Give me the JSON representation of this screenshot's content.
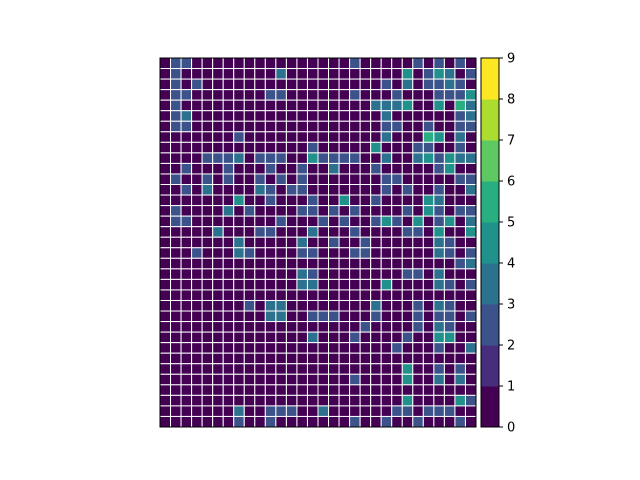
{
  "chart_data": {
    "type": "heatmap",
    "title": "",
    "xlabel": "",
    "ylabel": "",
    "rows": 35,
    "cols": 30,
    "grid": true,
    "cell_border_color": "#ffffff",
    "values": [
      [
        0,
        2,
        2,
        0,
        0,
        0,
        0,
        0,
        0,
        0,
        0,
        0,
        0,
        0,
        0,
        0,
        0,
        0,
        2,
        0,
        0,
        0,
        0,
        0,
        2,
        0,
        2,
        0,
        2,
        0
      ],
      [
        0,
        2,
        0,
        0,
        0,
        0,
        0,
        0,
        0,
        0,
        0,
        3,
        0,
        0,
        0,
        0,
        0,
        0,
        0,
        0,
        0,
        0,
        0,
        4,
        0,
        2,
        4,
        3,
        0,
        2
      ],
      [
        0,
        2,
        0,
        2,
        0,
        0,
        0,
        0,
        0,
        0,
        0,
        0,
        0,
        0,
        0,
        0,
        0,
        0,
        0,
        0,
        0,
        2,
        0,
        3,
        0,
        2,
        2,
        3,
        2,
        0
      ],
      [
        0,
        2,
        2,
        0,
        0,
        0,
        0,
        0,
        0,
        0,
        2,
        2,
        0,
        0,
        0,
        0,
        0,
        0,
        2,
        0,
        0,
        0,
        2,
        0,
        0,
        0,
        2,
        2,
        2,
        4
      ],
      [
        0,
        2,
        0,
        0,
        0,
        0,
        0,
        0,
        0,
        0,
        0,
        0,
        0,
        0,
        0,
        0,
        0,
        0,
        0,
        0,
        3,
        3,
        3,
        4,
        0,
        0,
        4,
        0,
        5,
        3
      ],
      [
        0,
        2,
        3,
        0,
        0,
        0,
        0,
        0,
        0,
        0,
        0,
        0,
        0,
        0,
        0,
        0,
        0,
        0,
        0,
        0,
        0,
        3,
        0,
        0,
        0,
        0,
        0,
        0,
        2,
        3
      ],
      [
        0,
        2,
        2,
        0,
        0,
        0,
        0,
        0,
        0,
        0,
        0,
        0,
        0,
        0,
        0,
        0,
        0,
        0,
        0,
        0,
        0,
        2,
        2,
        0,
        0,
        2,
        0,
        0,
        2,
        2
      ],
      [
        0,
        0,
        0,
        0,
        0,
        0,
        0,
        2,
        0,
        0,
        0,
        0,
        0,
        0,
        0,
        0,
        0,
        0,
        0,
        0,
        0,
        3,
        0,
        0,
        0,
        5,
        4,
        0,
        3,
        0
      ],
      [
        0,
        0,
        0,
        0,
        0,
        0,
        0,
        0,
        0,
        0,
        0,
        0,
        0,
        0,
        2,
        0,
        0,
        0,
        0,
        0,
        4,
        0,
        0,
        0,
        2,
        2,
        0,
        0,
        2,
        0
      ],
      [
        0,
        0,
        0,
        0,
        2,
        2,
        2,
        3,
        0,
        2,
        2,
        2,
        0,
        0,
        4,
        2,
        2,
        2,
        2,
        0,
        0,
        3,
        0,
        0,
        3,
        4,
        2,
        4,
        3,
        3
      ],
      [
        0,
        0,
        2,
        0,
        0,
        0,
        2,
        0,
        0,
        0,
        2,
        0,
        0,
        2,
        0,
        0,
        3,
        0,
        0,
        0,
        2,
        0,
        0,
        0,
        0,
        0,
        2,
        4,
        0,
        0
      ],
      [
        0,
        2,
        0,
        0,
        2,
        0,
        2,
        0,
        0,
        2,
        0,
        2,
        0,
        2,
        0,
        0,
        0,
        0,
        0,
        0,
        0,
        2,
        2,
        0,
        0,
        0,
        0,
        0,
        2,
        2
      ],
      [
        0,
        0,
        2,
        0,
        3,
        0,
        0,
        0,
        0,
        3,
        2,
        0,
        2,
        2,
        0,
        0,
        0,
        0,
        0,
        0,
        0,
        2,
        0,
        2,
        0,
        0,
        2,
        0,
        0,
        3
      ],
      [
        0,
        0,
        0,
        0,
        0,
        0,
        0,
        4,
        0,
        0,
        2,
        0,
        0,
        0,
        2,
        0,
        0,
        4,
        0,
        0,
        2,
        0,
        0,
        0,
        0,
        4,
        3,
        0,
        0,
        0
      ],
      [
        0,
        2,
        0,
        0,
        0,
        0,
        3,
        0,
        2,
        0,
        0,
        0,
        0,
        2,
        2,
        0,
        2,
        0,
        2,
        0,
        0,
        0,
        0,
        2,
        0,
        4,
        2,
        0,
        2,
        2
      ],
      [
        0,
        2,
        2,
        0,
        0,
        0,
        0,
        0,
        0,
        0,
        0,
        2,
        0,
        0,
        0,
        2,
        0,
        2,
        0,
        0,
        2,
        4,
        2,
        0,
        4,
        0,
        2,
        4,
        0,
        3
      ],
      [
        0,
        0,
        0,
        0,
        0,
        3,
        0,
        0,
        0,
        2,
        2,
        0,
        0,
        0,
        3,
        0,
        0,
        0,
        2,
        0,
        0,
        0,
        0,
        2,
        2,
        0,
        4,
        0,
        0,
        4
      ],
      [
        0,
        0,
        0,
        0,
        0,
        0,
        0,
        3,
        0,
        0,
        0,
        0,
        0,
        3,
        0,
        0,
        2,
        0,
        0,
        2,
        0,
        0,
        0,
        0,
        0,
        0,
        3,
        2,
        0,
        0
      ],
      [
        0,
        0,
        0,
        2,
        0,
        0,
        0,
        3,
        2,
        0,
        0,
        0,
        0,
        2,
        2,
        0,
        0,
        0,
        2,
        2,
        0,
        0,
        0,
        0,
        0,
        0,
        3,
        2,
        0,
        2
      ],
      [
        0,
        0,
        0,
        0,
        0,
        0,
        0,
        0,
        0,
        0,
        0,
        0,
        0,
        0,
        0,
        0,
        0,
        0,
        0,
        0,
        0,
        0,
        0,
        0,
        0,
        0,
        0,
        0,
        2,
        3
      ],
      [
        0,
        0,
        0,
        0,
        0,
        0,
        0,
        0,
        0,
        0,
        0,
        0,
        0,
        3,
        2,
        0,
        0,
        0,
        0,
        0,
        0,
        0,
        0,
        2,
        2,
        0,
        3,
        0,
        0,
        0
      ],
      [
        0,
        0,
        0,
        0,
        0,
        0,
        0,
        0,
        0,
        0,
        0,
        0,
        0,
        3,
        3,
        0,
        0,
        0,
        0,
        0,
        0,
        4,
        0,
        0,
        0,
        0,
        3,
        2,
        0,
        2
      ],
      [
        0,
        0,
        0,
        0,
        0,
        0,
        0,
        0,
        0,
        0,
        0,
        0,
        0,
        0,
        0,
        0,
        0,
        0,
        0,
        0,
        0,
        0,
        0,
        0,
        0,
        0,
        0,
        0,
        0,
        0
      ],
      [
        0,
        0,
        0,
        0,
        0,
        0,
        0,
        0,
        2,
        0,
        3,
        3,
        0,
        0,
        0,
        0,
        0,
        0,
        0,
        0,
        3,
        0,
        0,
        0,
        2,
        0,
        3,
        2,
        0,
        0
      ],
      [
        0,
        0,
        0,
        0,
        0,
        0,
        0,
        0,
        0,
        0,
        3,
        3,
        0,
        0,
        2,
        2,
        2,
        0,
        0,
        0,
        2,
        0,
        0,
        0,
        2,
        0,
        2,
        2,
        0,
        2
      ],
      [
        0,
        0,
        0,
        0,
        0,
        0,
        0,
        0,
        0,
        0,
        0,
        0,
        0,
        0,
        0,
        0,
        0,
        0,
        0,
        2,
        0,
        0,
        0,
        0,
        2,
        0,
        3,
        2,
        0,
        0
      ],
      [
        0,
        0,
        0,
        0,
        0,
        0,
        0,
        0,
        0,
        0,
        0,
        0,
        0,
        0,
        3,
        0,
        0,
        0,
        2,
        0,
        0,
        0,
        0,
        2,
        0,
        0,
        4,
        4,
        0,
        0
      ],
      [
        0,
        0,
        0,
        0,
        0,
        0,
        0,
        0,
        0,
        0,
        0,
        0,
        0,
        0,
        0,
        0,
        0,
        0,
        0,
        0,
        0,
        0,
        2,
        0,
        0,
        0,
        2,
        0,
        0,
        3
      ],
      [
        0,
        0,
        0,
        0,
        0,
        0,
        0,
        0,
        0,
        0,
        0,
        0,
        0,
        0,
        0,
        0,
        0,
        0,
        0,
        0,
        0,
        0,
        0,
        0,
        0,
        0,
        0,
        0,
        0,
        0
      ],
      [
        0,
        0,
        0,
        0,
        0,
        0,
        0,
        0,
        0,
        0,
        0,
        0,
        0,
        0,
        0,
        0,
        0,
        0,
        0,
        0,
        0,
        0,
        0,
        4,
        0,
        0,
        2,
        0,
        2,
        0
      ],
      [
        0,
        0,
        0,
        0,
        0,
        0,
        0,
        0,
        0,
        0,
        0,
        0,
        0,
        0,
        0,
        0,
        0,
        0,
        2,
        0,
        0,
        0,
        0,
        4,
        0,
        0,
        3,
        0,
        3,
        0
      ],
      [
        0,
        0,
        0,
        0,
        0,
        0,
        0,
        0,
        0,
        0,
        0,
        0,
        0,
        0,
        0,
        0,
        0,
        0,
        0,
        0,
        0,
        0,
        0,
        0,
        0,
        0,
        0,
        0,
        0,
        0
      ],
      [
        0,
        0,
        0,
        0,
        0,
        0,
        0,
        0,
        0,
        0,
        0,
        0,
        0,
        0,
        0,
        0,
        0,
        0,
        0,
        0,
        0,
        0,
        0,
        4,
        0,
        0,
        0,
        0,
        4,
        2
      ],
      [
        0,
        0,
        0,
        0,
        0,
        0,
        0,
        3,
        0,
        0,
        2,
        2,
        2,
        0,
        0,
        3,
        0,
        0,
        0,
        0,
        0,
        0,
        2,
        2,
        0,
        2,
        2,
        2,
        0,
        0
      ],
      [
        0,
        0,
        0,
        0,
        0,
        0,
        0,
        2,
        0,
        0,
        2,
        0,
        0,
        0,
        0,
        0,
        0,
        0,
        2,
        0,
        0,
        2,
        0,
        0,
        2,
        0,
        0,
        0,
        2,
        0
      ]
    ],
    "colorbar": {
      "ticks": [
        "0",
        "1",
        "2",
        "3",
        "4",
        "5",
        "6",
        "7",
        "8",
        "9"
      ],
      "range": [
        0,
        9
      ],
      "levels": [
        "#440154",
        "#472d7b",
        "#3b528b",
        "#2c728e",
        "#21918c",
        "#28ae80",
        "#5ec962",
        "#addc30",
        "#fde725"
      ]
    }
  }
}
